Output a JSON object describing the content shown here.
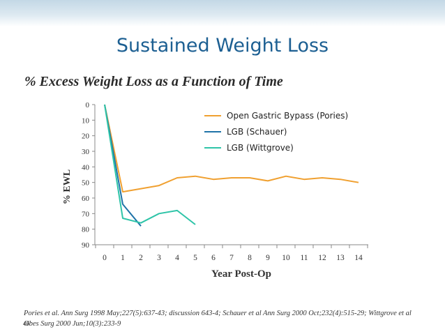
{
  "slide": {
    "title": "Sustained Weight Loss",
    "subtitle": "% Excess Weight Loss as a Function of Time",
    "citation": "Pories et al. Ann Surg 1998 May;227(5):637-43; discussion 643-4; Schauer et al Ann Surg  2000 Oct;232(4):515-29; Wittgrove et al Obes Surg 2000 Jun;10(3):233-9",
    "slide_number": "46"
  },
  "chart_data": {
    "type": "line",
    "xlabel": "Year Post-Op",
    "ylabel": "% EWL",
    "xlim": [
      0,
      14
    ],
    "ylim": [
      0,
      90
    ],
    "y_inverted": true,
    "x_ticks": [
      0,
      1,
      2,
      3,
      4,
      5,
      6,
      7,
      8,
      9,
      10,
      11,
      12,
      13,
      14
    ],
    "y_ticks": [
      0,
      10,
      20,
      30,
      40,
      50,
      60,
      70,
      80,
      90
    ],
    "legend_position": "top-right",
    "series": [
      {
        "name": "Open Gastric Bypass (Pories)",
        "color": "#f0a030",
        "x": [
          0,
          1,
          2,
          3,
          4,
          5,
          6,
          7,
          8,
          9,
          10,
          11,
          12,
          13,
          14
        ],
        "y": [
          0,
          56,
          54,
          52,
          47,
          46,
          48,
          47,
          47,
          49,
          46,
          48,
          47,
          48,
          50
        ]
      },
      {
        "name": "LGB (Schauer)",
        "color": "#1e73a8",
        "x": [
          0,
          1,
          2
        ],
        "y": [
          0,
          64,
          78
        ]
      },
      {
        "name": "LGB (Wittgrove)",
        "color": "#2ec4a8",
        "x": [
          0,
          1,
          2,
          3,
          4,
          5
        ],
        "y": [
          0,
          73,
          76,
          70,
          68,
          77
        ]
      }
    ]
  }
}
